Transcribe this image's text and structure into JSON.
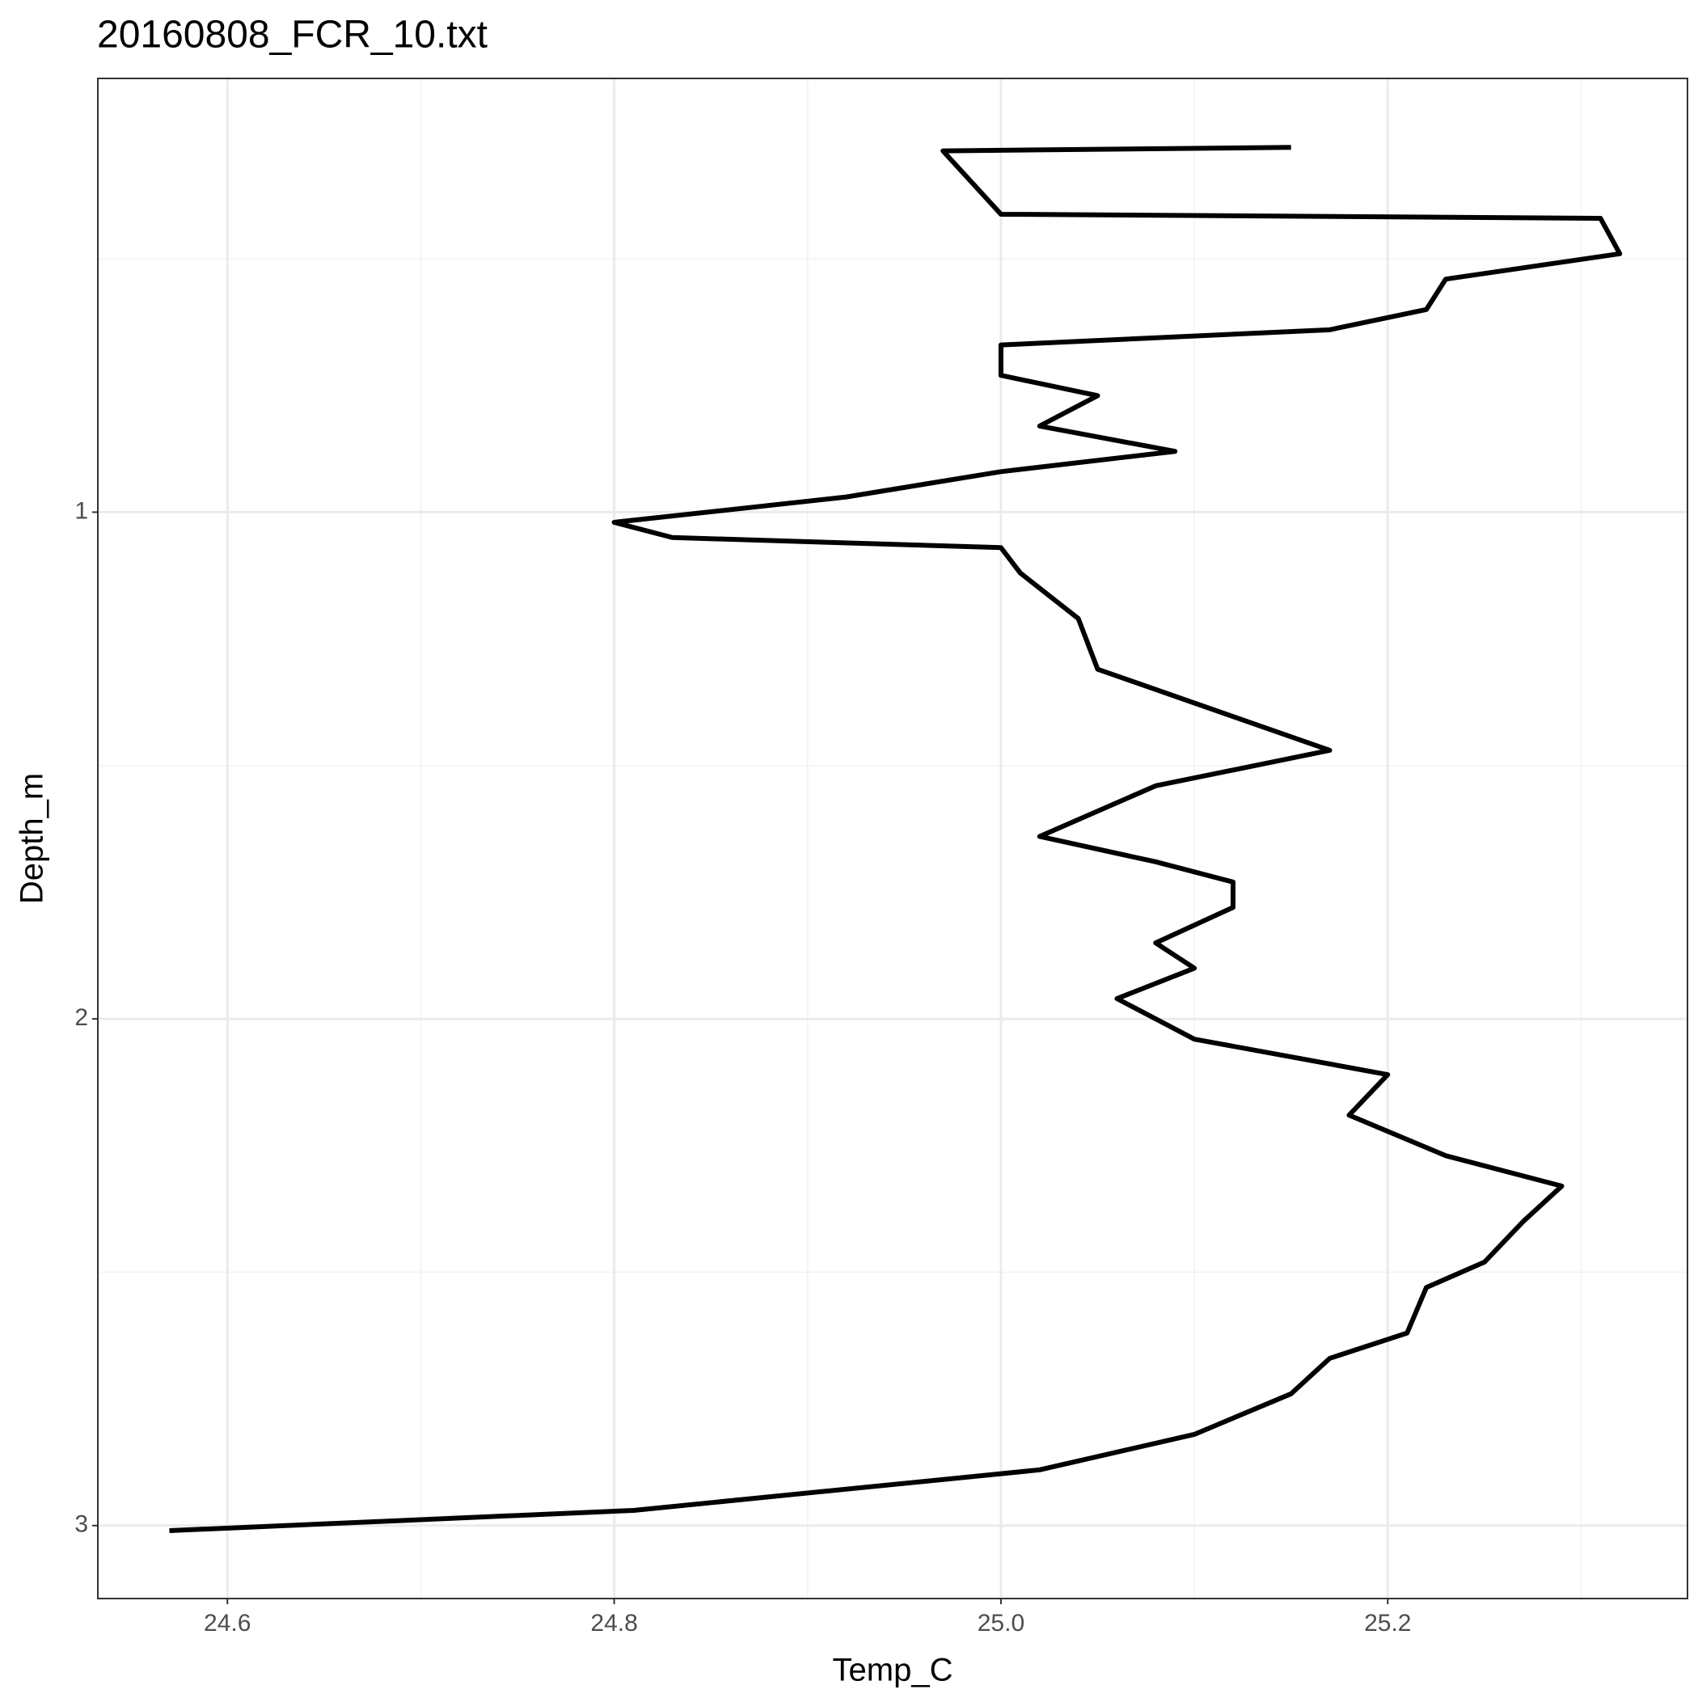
{
  "chart_data": {
    "type": "line",
    "title": "20160808_FCR_10.txt",
    "x_label": "Temp_C",
    "y_label": "Depth_m",
    "xlim": [
      24.533,
      25.355
    ],
    "ylim": [
      3.144,
      0.144
    ],
    "xticks": [
      24.6,
      24.8,
      {
        "value": 25,
        "label": "25.0"
      },
      25.2
    ],
    "yticks": [
      1,
      2,
      3
    ],
    "x_minor_grid": [
      24.7,
      24.9,
      25.1,
      25.3
    ],
    "y_minor_grid": [
      0.5,
      1.5,
      2.5
    ],
    "grid": true,
    "series": [
      {
        "color": "#000000",
        "x": [
          25.15,
          24.97,
          25.0,
          25.31,
          25.32,
          25.23,
          25.22,
          25.17,
          25.0,
          25.0,
          25.05,
          25.02,
          25.09,
          25.0,
          24.92,
          24.8,
          24.83,
          25.0,
          25.01,
          25.04,
          25.05,
          25.17,
          25.08,
          25.02,
          25.08,
          25.12,
          25.12,
          25.08,
          25.1,
          25.06,
          25.1,
          25.2,
          25.18,
          25.23,
          25.29,
          25.27,
          25.25,
          25.22,
          25.21,
          25.17,
          25.15,
          25.1,
          25.02,
          24.81,
          24.57
        ],
        "values": [
          0.28,
          0.287,
          0.412,
          0.42,
          0.49,
          0.54,
          0.6,
          0.64,
          0.67,
          0.73,
          0.77,
          0.83,
          0.88,
          0.92,
          0.97,
          1.02,
          1.05,
          1.07,
          1.12,
          1.21,
          1.31,
          1.47,
          1.54,
          1.64,
          1.69,
          1.73,
          1.78,
          1.85,
          1.9,
          1.96,
          2.04,
          2.11,
          2.19,
          2.27,
          2.33,
          2.4,
          2.48,
          2.53,
          2.62,
          2.67,
          2.74,
          2.82,
          2.89,
          2.97,
          3.01
        ]
      }
    ]
  }
}
